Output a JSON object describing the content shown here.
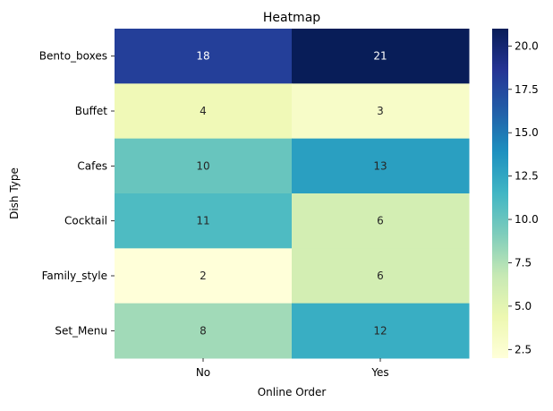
{
  "chart_data": {
    "type": "heatmap",
    "title": "Heatmap",
    "xlabel": "Online Order",
    "ylabel": "Dish Type",
    "x_categories": [
      "No",
      "Yes"
    ],
    "y_categories": [
      "Bento_boxes",
      "Buffet",
      "Cafes",
      "Cocktail",
      "Family_style",
      "Set_Menu"
    ],
    "values": [
      [
        18,
        21
      ],
      [
        4,
        3
      ],
      [
        10,
        13
      ],
      [
        11,
        6
      ],
      [
        2,
        6
      ],
      [
        8,
        12
      ]
    ],
    "colormap": "YlGnBu",
    "colorbar": {
      "range": [
        2,
        21
      ],
      "ticks": [
        2.5,
        5.0,
        7.5,
        10.0,
        12.5,
        15.0,
        17.5,
        20.0
      ],
      "tick_labels": [
        "2.5",
        "5.0",
        "7.5",
        "10.0",
        "12.5",
        "15.0",
        "17.5",
        "20.0"
      ]
    },
    "annotations": true,
    "grid": false,
    "legend": "colorbar-right"
  }
}
